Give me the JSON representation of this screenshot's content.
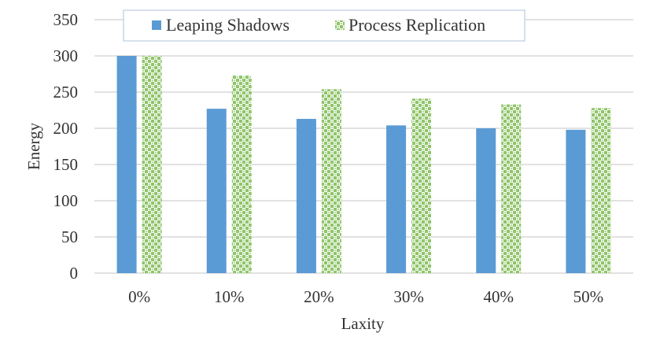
{
  "chart_data": {
    "type": "bar",
    "title": "",
    "xlabel": "Laxity",
    "ylabel": "Energy",
    "categories": [
      "0%",
      "10%",
      "20%",
      "30%",
      "40%",
      "50%"
    ],
    "series": [
      {
        "name": "Leaping Shadows",
        "values": [
          300,
          227,
          213,
          204,
          200,
          198
        ],
        "color": "#5b9bd5",
        "pattern": "solid"
      },
      {
        "name": "Process Replication",
        "values": [
          300,
          273,
          254,
          241,
          233,
          228
        ],
        "color": "#8fc46a",
        "pattern": "checker"
      }
    ],
    "ylim": [
      0,
      350
    ],
    "yticks": [
      0,
      50,
      100,
      150,
      200,
      250,
      300,
      350
    ],
    "grid": true,
    "legend_position": "top"
  }
}
